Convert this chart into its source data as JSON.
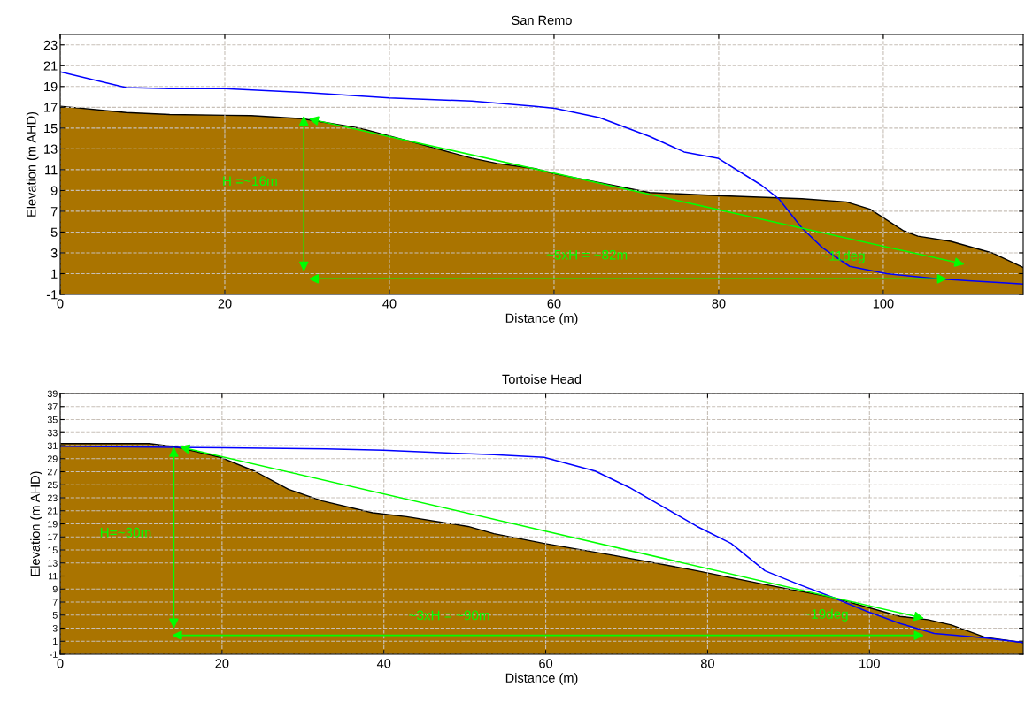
{
  "chart_data": [
    {
      "type": "area",
      "title": "San Remo",
      "xlabel": "Distance (m)",
      "ylabel": "Elevation (m AHD)",
      "xlim": [
        0,
        117
      ],
      "xticks": [
        0,
        20,
        40,
        60,
        80,
        100
      ],
      "ylim": [
        -1,
        24
      ],
      "yticks": [
        -1,
        1,
        3,
        5,
        7,
        9,
        11,
        13,
        15,
        17,
        19,
        21,
        23
      ],
      "grid": true,
      "line_style": "solid",
      "series": [
        {
          "color": "#aa7400",
          "x": [
            0,
            8,
            13.3,
            23.2,
            29.4,
            36.4,
            42.6,
            50,
            53.1,
            57.7,
            60.1,
            71.6,
            79.9,
            90.1,
            95.5,
            98.4,
            102.5,
            104.2,
            108.2,
            113.2,
            117
          ],
          "values": [
            17.1,
            16.5,
            16.3,
            16.2,
            15.9,
            15,
            13.7,
            12.1,
            11.6,
            11.1,
            10.6,
            8.8,
            8.5,
            8.2,
            7.9,
            7.2,
            5.1,
            4.6,
            4.1,
            3,
            1.6
          ]
        },
        {
          "type": "line",
          "color": "#0000ff",
          "x": [
            0,
            8,
            13.3,
            20,
            30,
            40,
            50,
            57.7,
            60.1,
            65.5,
            71.6,
            75.8,
            79.9,
            85.2,
            87.3,
            90.1,
            92.6,
            95.9,
            100.4,
            106.6,
            110.8,
            114.9,
            117
          ],
          "values": [
            20.4,
            18.9,
            18.8,
            18.8,
            18.4,
            17.9,
            17.6,
            17.1,
            16.9,
            16,
            14.2,
            12.7,
            12.1,
            9.5,
            8.2,
            5.4,
            3.5,
            1.7,
            1,
            0.5,
            0.3,
            0.1,
            0
          ]
        }
      ],
      "annotations": [
        "H =~16m",
        "~5xH = ~82m",
        "~11deg"
      ]
    },
    {
      "type": "area",
      "title": "Tortoise Head",
      "xlabel": "Distance (m)",
      "ylabel": "Elevation (m AHD)",
      "xlim": [
        0,
        119
      ],
      "xticks": [
        0,
        20,
        40,
        60,
        80,
        100
      ],
      "ylim": [
        -1,
        39
      ],
      "yticks": [
        -1,
        1,
        3,
        5,
        7,
        9,
        11,
        13,
        15,
        17,
        19,
        21,
        23,
        25,
        27,
        29,
        31,
        33,
        35,
        37,
        39
      ],
      "grid": true,
      "line_style": "solid",
      "series": [
        {
          "color": "#aa7400",
          "x": [
            0,
            11,
            14.3,
            19.8,
            24,
            28.2,
            32.4,
            38.6,
            42.8,
            50.4,
            53.6,
            59.8,
            68.2,
            78.7,
            87.1,
            95.5,
            103.8,
            107.2,
            110.1,
            114.3,
            119
          ],
          "values": [
            31.3,
            31.3,
            30.8,
            29.2,
            27.1,
            24.3,
            22.5,
            20.7,
            20.1,
            18.6,
            17.5,
            16,
            14.2,
            11.8,
            9.7,
            7.7,
            4.8,
            4.3,
            3.5,
            1.6,
            0.8
          ]
        },
        {
          "type": "line",
          "color": "#0000ff",
          "x": [
            0,
            16.9,
            32.8,
            39.9,
            49.1,
            53.6,
            59.8,
            66.1,
            70.3,
            78.7,
            82.9,
            87.1,
            91.3,
            95.5,
            99.6,
            103.8,
            108,
            114.3,
            119
          ],
          "values": [
            30.9,
            30.7,
            30.5,
            30.3,
            29.8,
            29.6,
            29.2,
            27.1,
            24.6,
            18.6,
            16,
            11.8,
            9.7,
            7.7,
            5.6,
            3.7,
            2.2,
            1.5,
            0.8
          ]
        }
      ],
      "annotations": [
        "H=~30m",
        "~3xH = ~90m",
        "~19deg"
      ]
    }
  ]
}
